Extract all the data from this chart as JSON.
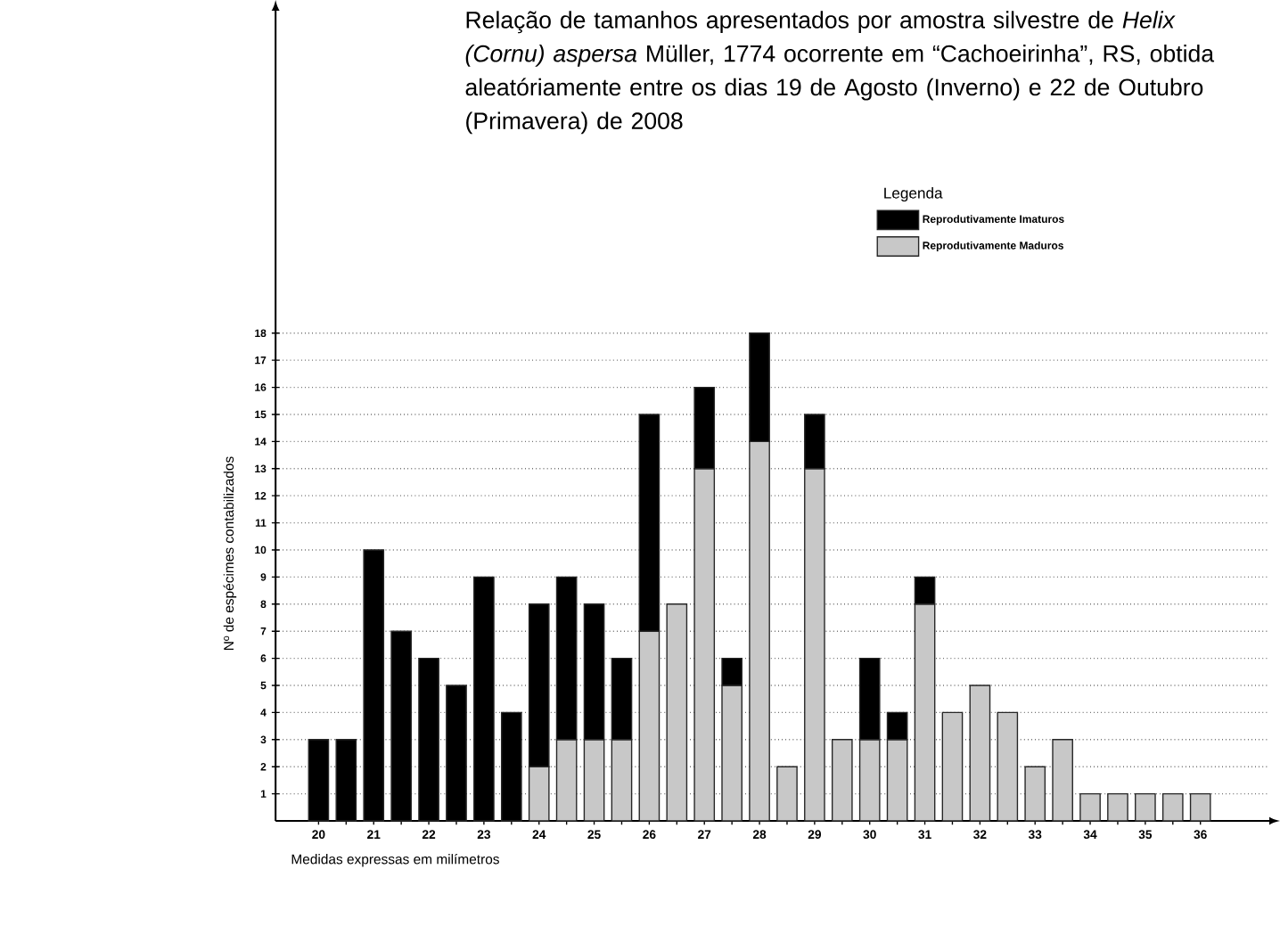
{
  "chart_data": {
    "type": "bar",
    "stacked": true,
    "title": "Relação de tamanhos apresentados por amostra silvestre de *Helix (Cornu) aspersa* Müller, 1774 ocorrente em “Cachoeirinha”, RS, obtida aleatóriamente entre os dias 19 de Agosto (Inverno) e 22 de Outubro (Primavera) de 2008",
    "xlabel": "Medidas expressas em milímetros",
    "ylabel": "Nº de espécimes contabilizados",
    "legend_title": "Legenda",
    "x": [
      20,
      20.5,
      21,
      21.5,
      22,
      22.5,
      23,
      23.5,
      24,
      24.5,
      25,
      25.5,
      26,
      26.5,
      27,
      27.5,
      28,
      28.5,
      29,
      29.5,
      30,
      30.5,
      31,
      31.5,
      32,
      32.5,
      33,
      33.5,
      34,
      34.5,
      35,
      35.5,
      36
    ],
    "series": [
      {
        "name": "Reprodutivamente Maduros",
        "color": "#c8c8c8",
        "values": [
          0,
          0,
          0,
          0,
          0,
          0,
          0,
          0,
          2,
          3,
          3,
          3,
          7,
          8,
          13,
          5,
          14,
          2,
          13,
          3,
          3,
          3,
          8,
          4,
          5,
          4,
          2,
          3,
          1,
          1,
          1,
          1,
          1
        ]
      },
      {
        "name": "Reprodutivamente Imaturos",
        "color": "#000000",
        "values": [
          3,
          3,
          10,
          7,
          6,
          5,
          9,
          4,
          6,
          6,
          5,
          3,
          8,
          0,
          3,
          1,
          4,
          0,
          2,
          0,
          3,
          1,
          1,
          0,
          0,
          0,
          0,
          0,
          0,
          0,
          0,
          0,
          0
        ]
      }
    ],
    "xlim": [
      19.22,
      37.25
    ],
    "ylim": [
      0,
      29.9
    ],
    "xticks": [
      20,
      {
        "value": 20.5,
        "label": null
      },
      21,
      {
        "value": 21.5,
        "label": null
      },
      22,
      {
        "value": 22.5,
        "label": null
      },
      23,
      {
        "value": 23.5,
        "label": null
      },
      24,
      {
        "value": 24.5,
        "label": null
      },
      25,
      {
        "value": 25.5,
        "label": null
      },
      26,
      {
        "value": 26.5,
        "label": null
      },
      27,
      {
        "value": 27.5,
        "label": null
      },
      28,
      {
        "value": 28.5,
        "label": null
      },
      29,
      {
        "value": 29.5,
        "label": null
      },
      30,
      {
        "value": 30.5,
        "label": null
      },
      31,
      {
        "value": 31.5,
        "label": null
      },
      32,
      {
        "value": 32.5,
        "label": null
      },
      33,
      {
        "value": 33.5,
        "label": null
      },
      34,
      {
        "value": 34.5,
        "label": null
      },
      35,
      {
        "value": 35.5,
        "label": null
      },
      36
    ],
    "yticks": [
      1,
      2,
      3,
      4,
      5,
      6,
      7,
      8,
      9,
      10,
      11,
      12,
      13,
      14,
      15,
      16,
      17,
      18
    ],
    "grid": "y",
    "legend": "top right"
  }
}
